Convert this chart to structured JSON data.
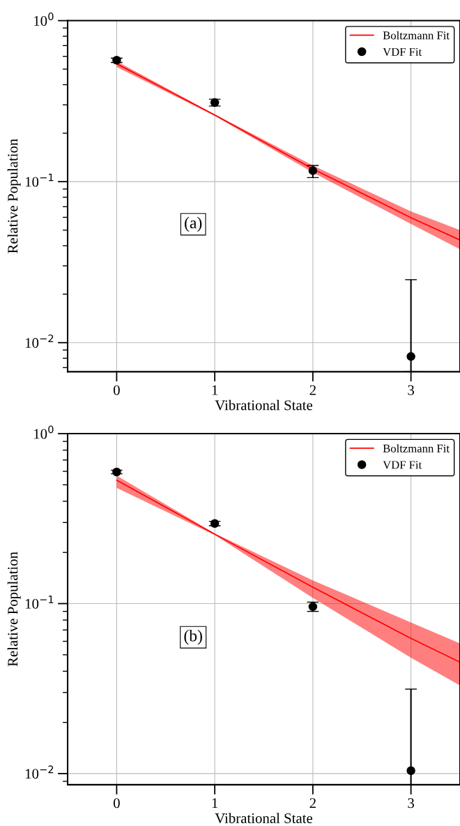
{
  "chart_data": [
    {
      "type": "line",
      "xlabel": "Vibrational State",
      "ylabel": "Relative Population",
      "log": "y",
      "xlim": [
        -0.5,
        3.5
      ],
      "xticks": [
        0,
        1,
        2,
        3
      ],
      "ylim": [
        0.0066,
        1
      ],
      "yticks": [
        {
          "value": 1,
          "label": "10$^{0}$"
        },
        {
          "value": 0.1,
          "label": "10$^{−1}$"
        },
        {
          "value": 0.01,
          "label": "10$^{−2}$"
        }
      ],
      "grid": true,
      "legend": "top right",
      "annotations": [
        "(a)"
      ],
      "series": [
        {
          "name": "Boltzmann Fit",
          "type": "line",
          "color": "#ff0000",
          "x": [
            0,
            1,
            2,
            3,
            3.5
          ],
          "values": [
            0.54,
            0.259,
            0.12,
            0.0598,
            0.0434
          ],
          "lower": [
            0.515,
            0.256,
            0.114,
            0.0546,
            0.038
          ],
          "upper": [
            0.56,
            0.262,
            0.126,
            0.0653,
            0.05
          ]
        },
        {
          "name": "VDF Fit",
          "type": "scatter",
          "color": "#000000",
          "marker": "circle",
          "x": [
            0,
            1,
            2,
            3
          ],
          "values": [
            0.568,
            0.31,
            0.117,
            0.0082
          ],
          "errors": [
            [
              0.55,
              0.585
            ],
            [
              0.295,
              0.325
            ],
            [
              0.106,
              0.126
            ],
            [
              0.0066,
              0.0246
            ]
          ]
        }
      ]
    },
    {
      "type": "line",
      "xlabel": "Vibrational State",
      "ylabel": "Relative Population",
      "log": "y",
      "xlim": [
        -0.5,
        3.5
      ],
      "xticks": [
        0,
        1,
        2,
        3
      ],
      "ylim": [
        0.0086,
        1
      ],
      "yticks": [
        {
          "value": 1,
          "label": "10$^{0}$"
        },
        {
          "value": 0.1,
          "label": "10$^{−1}$"
        },
        {
          "value": 0.01,
          "label": "10$^{−2}$"
        }
      ],
      "grid": true,
      "legend": "top right",
      "annotations": [
        "(b)"
      ],
      "series": [
        {
          "name": "Boltzmann Fit",
          "type": "line",
          "color": "#ff0000",
          "x": [
            0,
            1,
            2,
            3,
            3.5
          ],
          "values": [
            0.532,
            0.256,
            0.125,
            0.0624,
            0.0452
          ],
          "lower": [
            0.48,
            0.253,
            0.108,
            0.048,
            0.033
          ],
          "upper": [
            0.566,
            0.259,
            0.137,
            0.0775,
            0.0583
          ]
        },
        {
          "name": "VDF Fit",
          "type": "scatter",
          "color": "#000000",
          "marker": "circle",
          "x": [
            0,
            1,
            2,
            3
          ],
          "values": [
            0.595,
            0.296,
            0.096,
            0.0104
          ],
          "errors": [
            [
              0.58,
              0.61
            ],
            [
              0.287,
              0.305
            ],
            [
              0.09,
              0.102
            ],
            [
              0.0086,
              0.0314
            ]
          ]
        }
      ]
    }
  ]
}
